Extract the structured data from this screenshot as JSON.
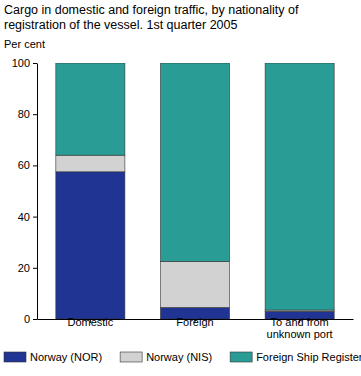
{
  "chart_data": {
    "type": "bar",
    "stacked": true,
    "title": "Cargo in domestic and foreign traffic, by nationality of registration of the vessel. 1st quarter 2005",
    "y_label": "Per cent",
    "categories": [
      "Domestic",
      "Foreign",
      "To and from unknown port"
    ],
    "series": [
      {
        "name": "Norway (NOR)",
        "color": "#1f3493",
        "values": [
          57.5,
          4.5,
          3
        ]
      },
      {
        "name": "Norway (NIS)",
        "color": "#d2d2d2",
        "values": [
          6.5,
          18,
          0.5
        ]
      },
      {
        "name": "Foreign Ship Registers",
        "color": "#2a9c96",
        "values": [
          36,
          77.5,
          96.5
        ]
      }
    ],
    "ylim": [
      0,
      100
    ],
    "yticks": [
      0,
      20,
      40,
      60,
      80,
      100
    ],
    "grid": false,
    "legend": "bottom"
  }
}
